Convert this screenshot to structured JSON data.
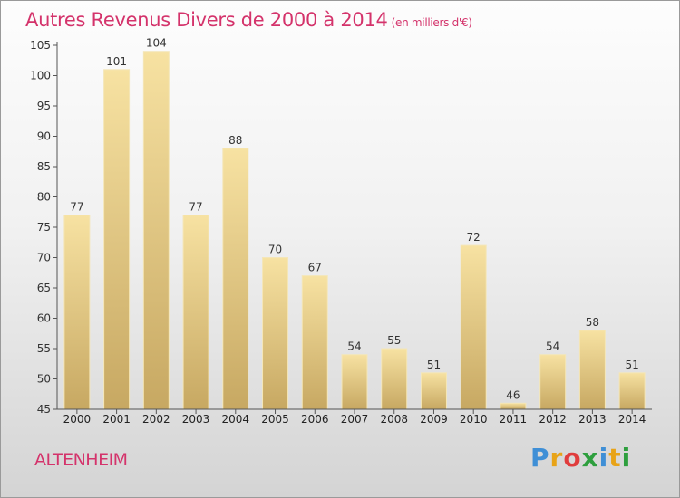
{
  "header": {
    "title": "Autres Revenus Divers de 2000 à 2014",
    "unit": "(en milliers d'€)"
  },
  "footer": {
    "location": "ALTENHEIM",
    "brand_letters": [
      "P",
      "r",
      "o",
      "x",
      "i",
      "t",
      "i"
    ],
    "brand_colors": [
      "#3f8fd6",
      "#e8a317",
      "#e03c3c",
      "#2e9f3e",
      "#3f8fd6",
      "#e8a317",
      "#2e9f3e"
    ]
  },
  "chart_data": {
    "type": "bar",
    "title": "Autres Revenus Divers de 2000 à 2014",
    "unit": "(en milliers d'€)",
    "categories": [
      "2000",
      "2001",
      "2002",
      "2003",
      "2004",
      "2005",
      "2006",
      "2007",
      "2008",
      "2009",
      "2010",
      "2011",
      "2012",
      "2013",
      "2014"
    ],
    "values": [
      77,
      101,
      104,
      77,
      88,
      70,
      67,
      54,
      55,
      51,
      72,
      46,
      54,
      58,
      51
    ],
    "ylim": [
      45,
      105
    ],
    "yticks": [
      45,
      50,
      55,
      60,
      65,
      70,
      75,
      80,
      85,
      90,
      95,
      100,
      105
    ],
    "grid": false,
    "legend": "none",
    "bar_color": "#eccf87"
  }
}
